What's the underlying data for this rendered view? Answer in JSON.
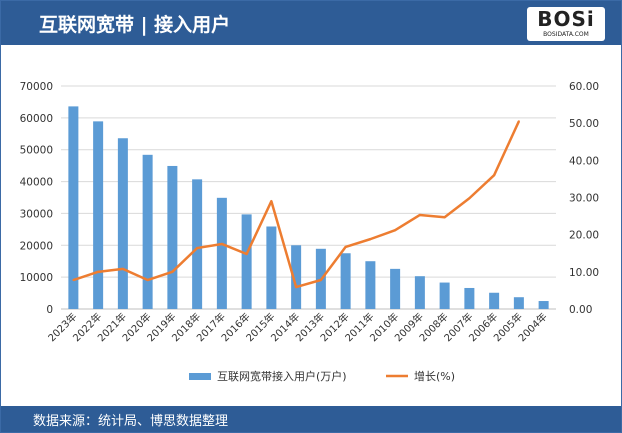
{
  "header": {
    "title": "互联网宽带 | 接入用户",
    "logo_text": "BOSi",
    "logo_sub": "BOSIDATA.COM"
  },
  "footer": {
    "source": "数据来源：统计局、博思数据整理"
  },
  "colors": {
    "bar": "#5b9bd5",
    "line": "#ed7d31",
    "header": "#2e5c96"
  },
  "chart_data": {
    "type": "bar+line",
    "categories": [
      "2023年",
      "2022年",
      "2021年",
      "2020年",
      "2019年",
      "2018年",
      "2017年",
      "2016年",
      "2015年",
      "2014年",
      "2013年",
      "2012年",
      "2011年",
      "2010年",
      "2009年",
      "2008年",
      "2007年",
      "2006年",
      "2005年",
      "2004年"
    ],
    "series": [
      {
        "name": "互联网宽带接入用户(万户)",
        "type": "bar",
        "axis": "left",
        "values": [
          63600,
          58900,
          53600,
          48400,
          44900,
          40700,
          34900,
          29700,
          25900,
          20000,
          18900,
          17500,
          15000,
          12600,
          10300,
          8300,
          6600,
          5100,
          3700,
          2500
        ]
      },
      {
        "name": "增长(%)",
        "type": "line",
        "axis": "right",
        "values": [
          7.8,
          10.0,
          10.8,
          7.8,
          10.0,
          16.4,
          17.5,
          14.8,
          29.0,
          5.9,
          7.8,
          16.7,
          18.8,
          21.2,
          25.3,
          24.7,
          29.8,
          36.0,
          50.5,
          null
        ]
      }
    ],
    "y_left": {
      "range": [
        0,
        70000
      ],
      "ticks": [
        "0",
        "10000",
        "20000",
        "30000",
        "40000",
        "50000",
        "60000",
        "70000"
      ]
    },
    "y_right": {
      "range": [
        0,
        60
      ],
      "ticks": [
        "0.00",
        "10.00",
        "20.00",
        "30.00",
        "40.00",
        "50.00",
        "60.00"
      ]
    },
    "grid": true,
    "legend": "bottom"
  }
}
